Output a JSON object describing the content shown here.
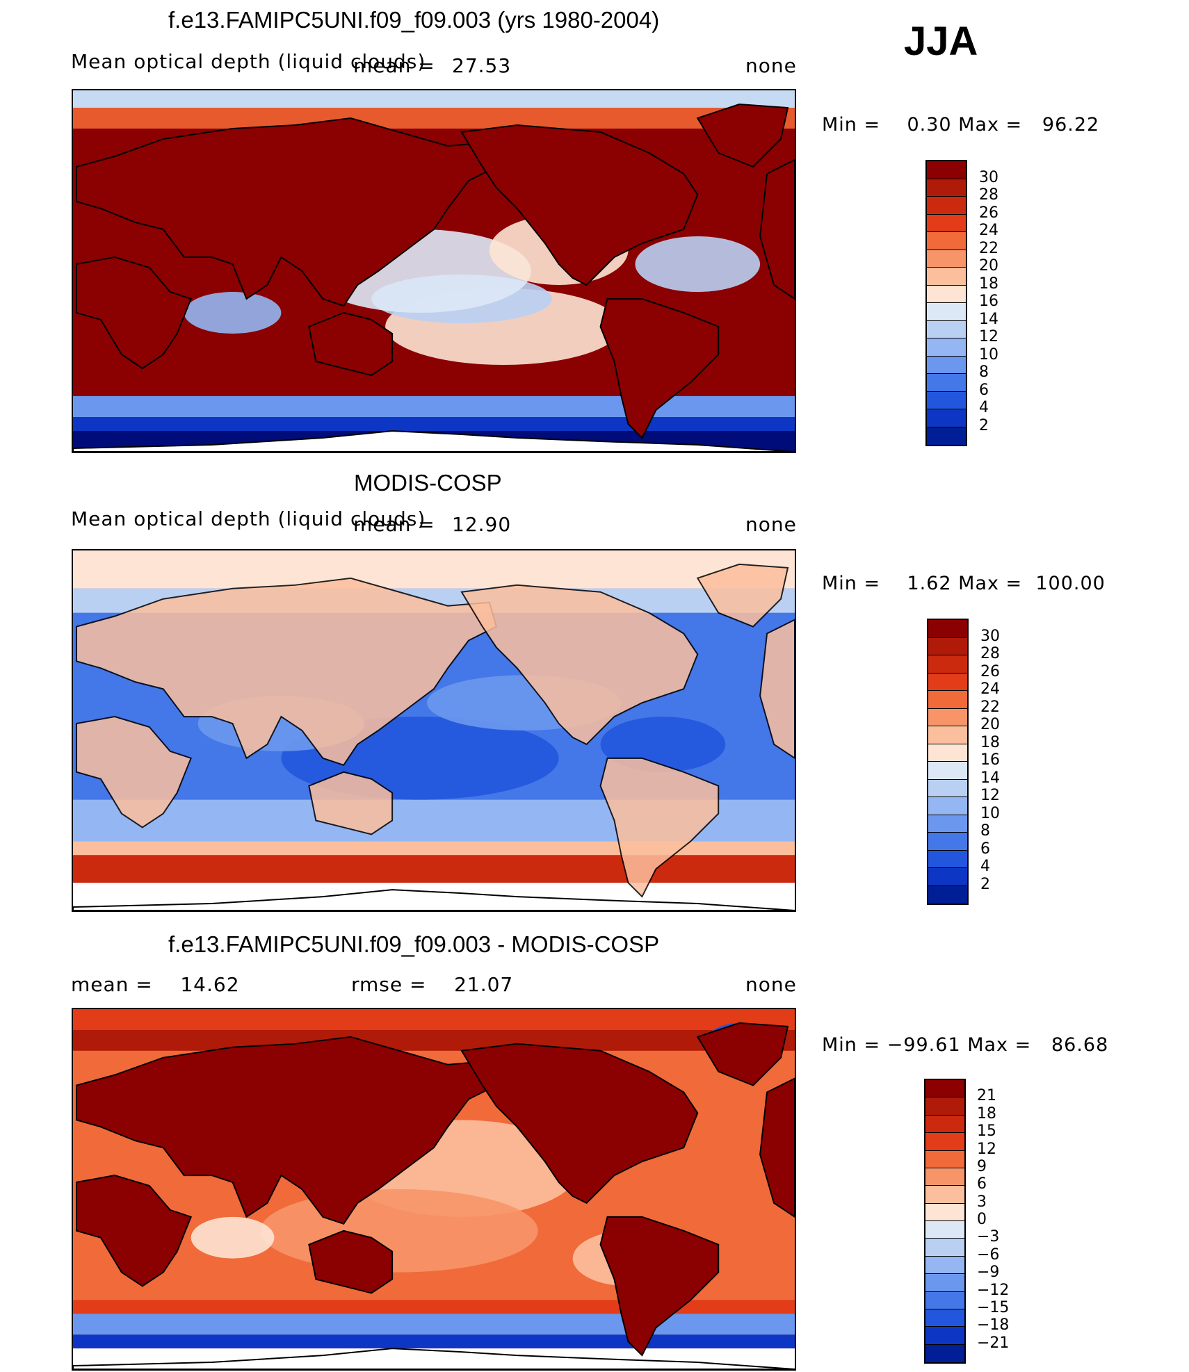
{
  "season": "JJA",
  "panels": [
    {
      "id": "model",
      "title": "f.e13.FAMIPC5UNI.f09_f09.003 (yrs 1980-2004)",
      "left_label": "Mean optical depth (liquid clouds)",
      "mean_label": "mean =",
      "mean_value": "27.53",
      "right_label": "none",
      "minmax": "Min =    0.30 Max =   96.22",
      "colorbar_ticks": [
        "30",
        "28",
        "26",
        "24",
        "22",
        "20",
        "18",
        "16",
        "14",
        "12",
        "10",
        "8",
        "6",
        "4",
        "2"
      ],
      "field_level": "high"
    },
    {
      "id": "obs",
      "title": "MODIS-COSP",
      "left_label": "Mean optical depth (liquid clouds)",
      "mean_label": "mean =",
      "mean_value": "12.90",
      "right_label": "none",
      "minmax": "Min =    1.62 Max =  100.00",
      "colorbar_ticks": [
        "30",
        "28",
        "26",
        "24",
        "22",
        "20",
        "18",
        "16",
        "14",
        "12",
        "10",
        "8",
        "6",
        "4",
        "2"
      ],
      "field_level": "low"
    },
    {
      "id": "diff",
      "title": "f.e13.FAMIPC5UNI.f09_f09.003 - MODIS-COSP",
      "mean_text": "mean =    14.62",
      "rmse_text": "rmse =    21.07",
      "right_label": "none",
      "minmax": "Min = −99.61 Max =   86.68",
      "colorbar_ticks": [
        "21",
        "18",
        "15",
        "12",
        "9",
        "6",
        "3",
        "0",
        "−3",
        "−6",
        "−9",
        "−12",
        "−15",
        "−18",
        "−21"
      ],
      "field_level": "diff"
    }
  ],
  "colorbar_colors": [
    "#8b0000",
    "#b01a08",
    "#cc2a0f",
    "#e23c18",
    "#f06a3a",
    "#f79569",
    "#fcbf9d",
    "#fde4d4",
    "#dde8f6",
    "#b9d0f3",
    "#94b6f2",
    "#6b98ee",
    "#4477e8",
    "#2256dd",
    "#0d36c4",
    "#001e96",
    "#000c7a"
  ]
}
